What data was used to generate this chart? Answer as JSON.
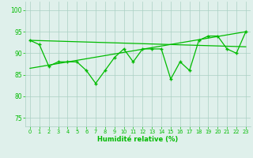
{
  "x": [
    0,
    1,
    2,
    3,
    4,
    5,
    6,
    7,
    8,
    9,
    10,
    11,
    12,
    13,
    14,
    15,
    16,
    17,
    18,
    19,
    20,
    21,
    22,
    23
  ],
  "y": [
    93,
    92,
    87,
    88,
    88,
    88,
    86,
    83,
    86,
    89,
    91,
    88,
    91,
    91,
    91,
    84,
    88,
    86,
    93,
    94,
    94,
    91,
    90,
    95
  ],
  "trend1_x": [
    0,
    23
  ],
  "trend1_y": [
    86.5,
    95.0
  ],
  "trend2_x": [
    0,
    23
  ],
  "trend2_y": [
    93.0,
    91.5
  ],
  "line_color": "#00bb00",
  "bg_color": "#dff0eb",
  "grid_color": "#aacfc4",
  "xlabel": "Humidité relative (%)",
  "ylim": [
    73,
    102
  ],
  "yticks": [
    75,
    80,
    85,
    90,
    95,
    100
  ],
  "xticks": [
    0,
    1,
    2,
    3,
    4,
    5,
    6,
    7,
    8,
    9,
    10,
    11,
    12,
    13,
    14,
    15,
    16,
    17,
    18,
    19,
    20,
    21,
    22,
    23
  ],
  "marker": "+"
}
